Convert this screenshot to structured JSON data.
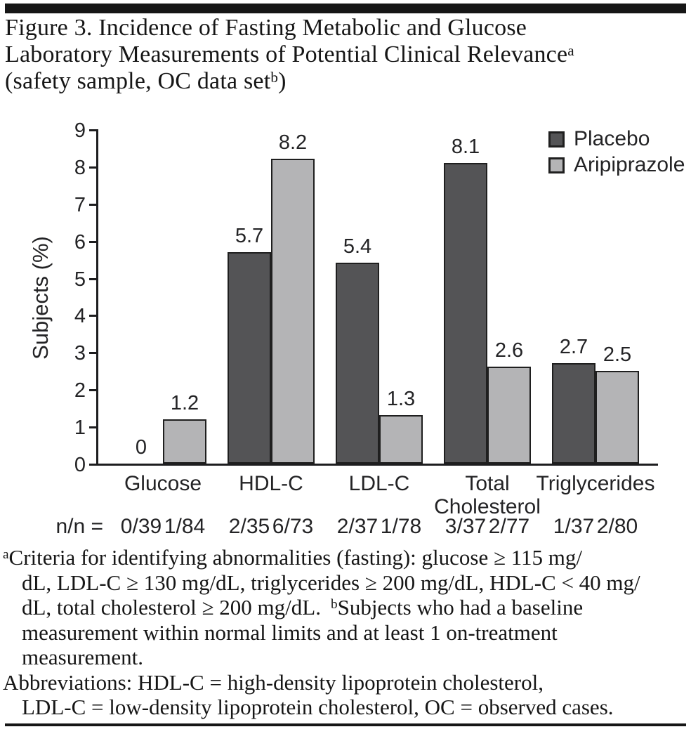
{
  "figure": {
    "title_line1": "Figure 3. Incidence of Fasting Metabolic and Glucose",
    "title_line2": "Laboratory Measurements of Potential Clinical Relevance",
    "title_line2_sup": "a",
    "title_line3_pre": "(safety sample, OC data set",
    "title_line3_sup": "b",
    "title_line3_post": ")"
  },
  "chart_data": {
    "type": "bar",
    "title": "",
    "xlabel": "",
    "ylabel": "Subjects (%)",
    "ylim": [
      0,
      9
    ],
    "yticks": [
      0,
      1,
      2,
      3,
      4,
      5,
      6,
      7,
      8,
      9
    ],
    "grid": false,
    "legend_position": "top-right",
    "categories": [
      "Glucose",
      "HDL-C",
      "LDL-C",
      "Total\nCholesterol",
      "Triglycerides"
    ],
    "series": [
      {
        "name": "Placebo",
        "color": "#545456",
        "values": [
          0,
          5.7,
          5.4,
          8.1,
          2.7
        ],
        "labels": [
          "0",
          "5.7",
          "5.4",
          "8.1",
          "2.7"
        ]
      },
      {
        "name": "Aripiprazole",
        "color": "#b4b4b6",
        "values": [
          1.2,
          8.2,
          1.3,
          2.6,
          2.5
        ],
        "labels": [
          "1.2",
          "8.2",
          "1.3",
          "2.6",
          "2.5"
        ]
      }
    ],
    "n_row": {
      "prefix": "n/n =",
      "pairs": [
        [
          "0/39",
          "1/84"
        ],
        [
          "2/35",
          "6/73"
        ],
        [
          "2/37",
          "1/78"
        ],
        [
          "3/37",
          "2/77"
        ],
        [
          "1/37",
          "2/80"
        ]
      ]
    }
  },
  "footnotes": {
    "a_sup": "a",
    "a_line1": "Criteria for identifying abnormalities (fasting): glucose ≥ 115 mg/",
    "a_line2": "dL, LDL-C ≥ 130 mg/dL, triglycerides ≥ 200 mg/dL, HDL-C < 40 mg/",
    "a_line3_pre": "dL, total cholesterol ≥ 200 mg/dL.",
    "b_sup": "b",
    "b_line1": "Subjects who had a baseline",
    "b_line2": "measurement within normal limits and at least 1 on-treatment",
    "b_line3": "measurement.",
    "abbrev_line1": "Abbreviations: HDL-C = high-density lipoprotein cholesterol,",
    "abbrev_line2": "LDL-C = low-density lipoprotein cholesterol, OC = observed cases."
  },
  "colors": {
    "ink": "#1d1d1f",
    "bar_placebo": "#545456",
    "bar_aripiprazole": "#b4b4b6"
  }
}
